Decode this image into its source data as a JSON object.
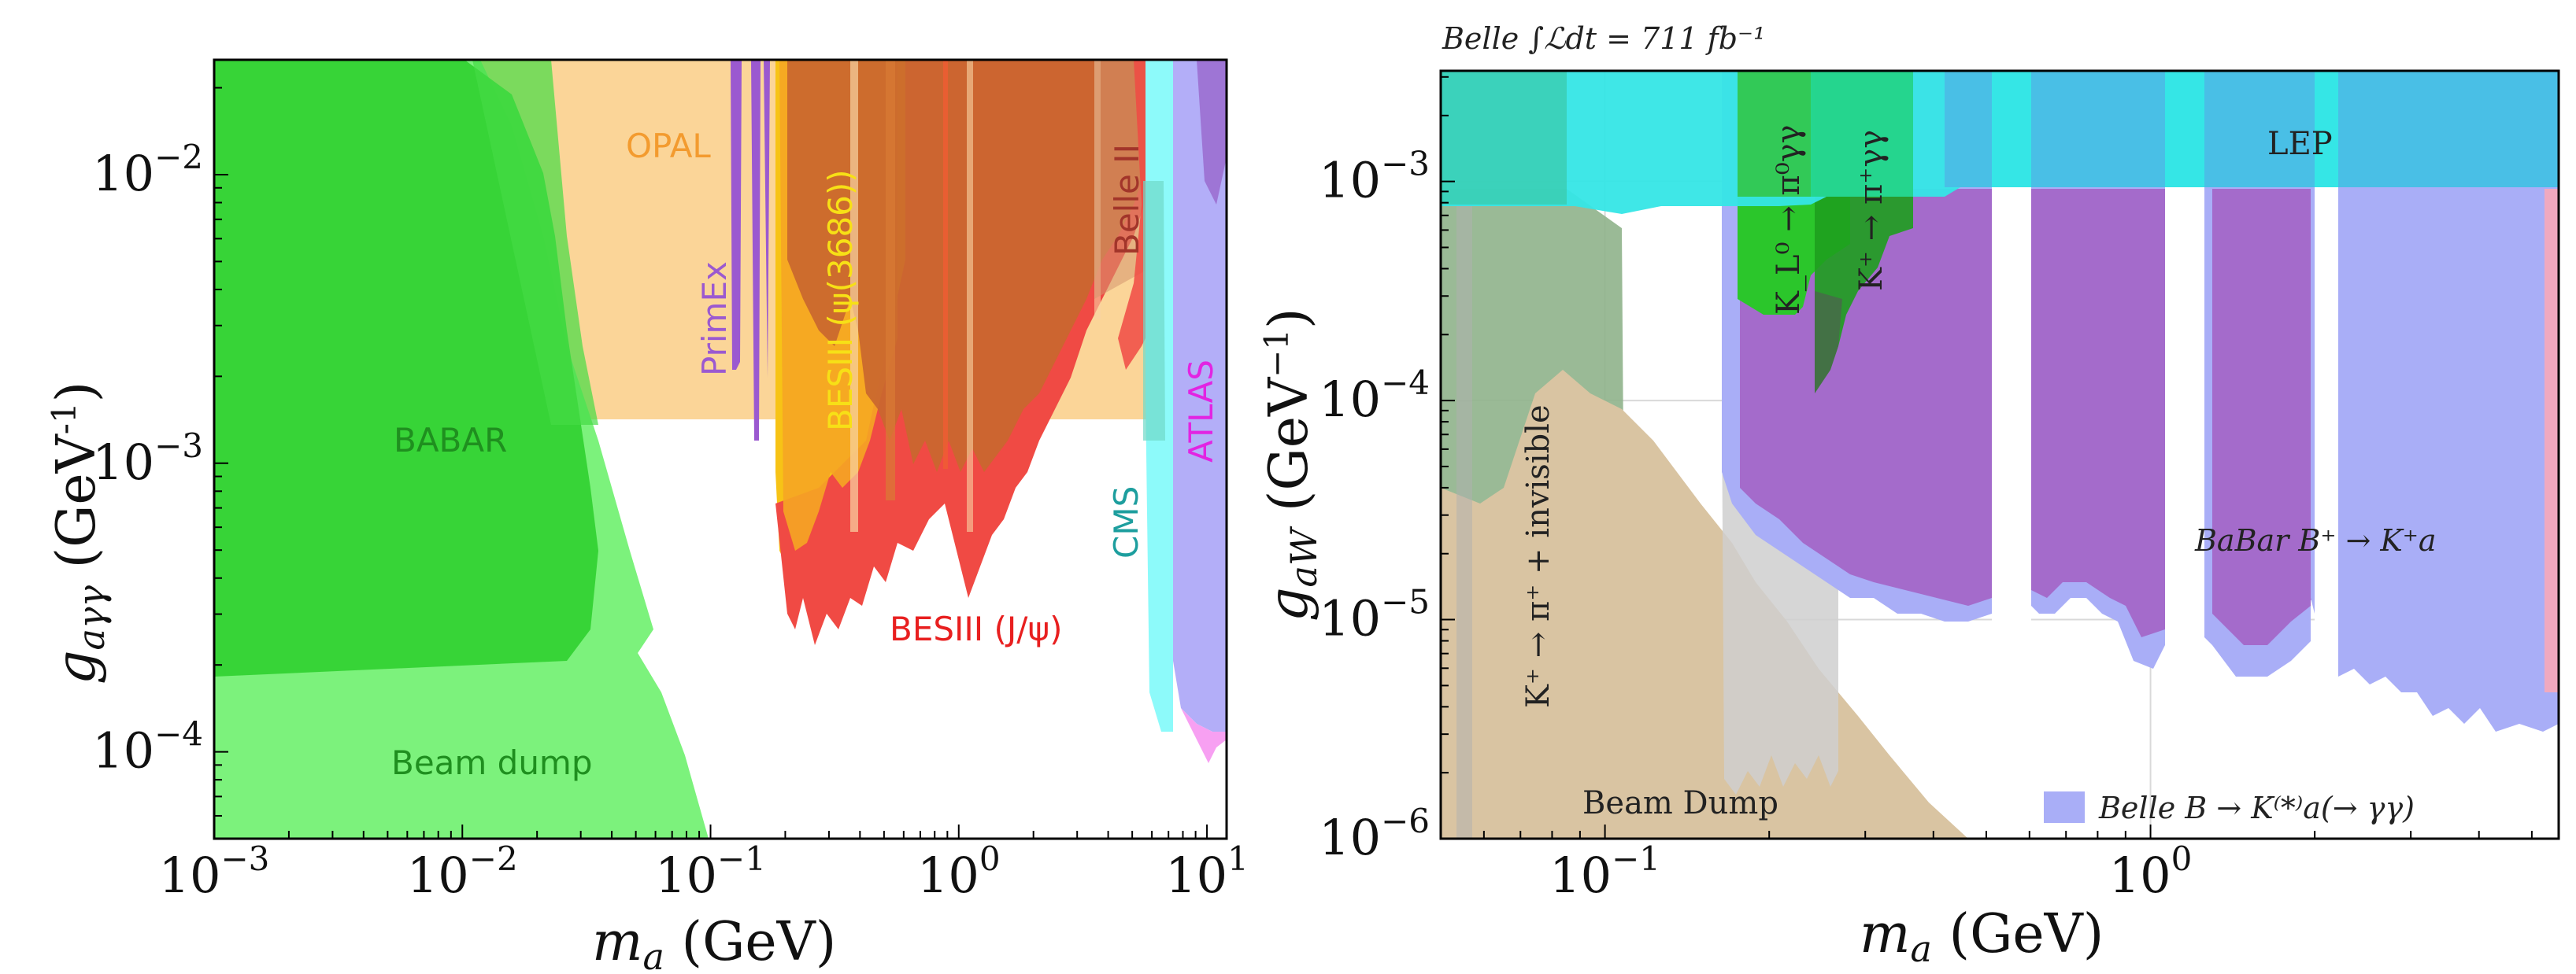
{
  "chart_data": [
    {
      "type": "area",
      "panel": "left",
      "title": "",
      "xlabel": "m_a (GeV)",
      "ylabel": "g_aγγ (GeV⁻¹)",
      "xscale": "log",
      "yscale": "log",
      "xlim": [
        0.001,
        12
      ],
      "ylim": [
        5e-05,
        0.025
      ],
      "x_ticks": [
        {
          "value": 0.001,
          "base": "10",
          "exp": "−3"
        },
        {
          "value": 0.01,
          "base": "10",
          "exp": "−2"
        },
        {
          "value": 0.1,
          "base": "10",
          "exp": "−1"
        },
        {
          "value": 1,
          "base": "10",
          "exp": "0"
        },
        {
          "value": 10,
          "base": "10",
          "exp": "1"
        }
      ],
      "y_ticks": [
        {
          "value": 0.0001,
          "base": "10",
          "exp": "−4"
        },
        {
          "value": 0.001,
          "base": "10",
          "exp": "−3"
        },
        {
          "value": 0.01,
          "base": "10",
          "exp": "−2"
        }
      ],
      "regions": [
        {
          "label": "OPAL",
          "color": "#f7a541"
        },
        {
          "label": "Beam dump",
          "color": "#5bef5b"
        },
        {
          "label": "BABAR",
          "color": "#2bc62b"
        },
        {
          "label": "PrimEx",
          "color": "#9b59d0"
        },
        {
          "label": "BESIII (ψ(3686))",
          "color": "#f7c316"
        },
        {
          "label": "BESIII (J/ψ)",
          "color": "#f0413c"
        },
        {
          "label": "Belle II",
          "color": "#b8461e"
        },
        {
          "label": "CMS",
          "color": "#17a3a3"
        },
        {
          "label": "ATLAS",
          "color": "#e524e5"
        }
      ]
    },
    {
      "type": "area",
      "panel": "right",
      "title": "Belle ∫ℒdt = 711 fb⁻¹",
      "xlabel": "m_a (GeV)",
      "ylabel": "g_aW (GeV⁻¹)",
      "xscale": "log",
      "yscale": "log",
      "xlim": [
        0.05,
        5.6
      ],
      "ylim": [
        1e-06,
        0.0032
      ],
      "x_ticks": [
        {
          "value": 0.1,
          "base": "10",
          "exp": "−1"
        },
        {
          "value": 1,
          "base": "10",
          "exp": "0"
        }
      ],
      "y_ticks": [
        {
          "value": 1e-06,
          "base": "10",
          "exp": "−6"
        },
        {
          "value": 1e-05,
          "base": "10",
          "exp": "−5"
        },
        {
          "value": 0.0001,
          "base": "10",
          "exp": "−4"
        },
        {
          "value": 0.001,
          "base": "10",
          "exp": "−3"
        }
      ],
      "grid": true,
      "regions": [
        {
          "label": "LEP",
          "color": "#35e6e6"
        },
        {
          "label": "K⁺ → π⁺ + invisible",
          "color": "#5aa85a"
        },
        {
          "label": "K_L⁰ → π⁰γγ",
          "color": "#2bc62b"
        },
        {
          "label": "K⁺ → π⁺γγ",
          "color": "#1e9e1e"
        },
        {
          "label": "Beam Dump",
          "color": "#d9c4a2"
        },
        {
          "label": "BaBar B⁺ → K⁺a",
          "color": "#a367c8"
        }
      ],
      "legend": {
        "position": "bottom-right",
        "entries": [
          {
            "label": "Belle B → K⁽*⁾a(→ γγ)",
            "color": "#a9aef7"
          }
        ]
      }
    }
  ]
}
